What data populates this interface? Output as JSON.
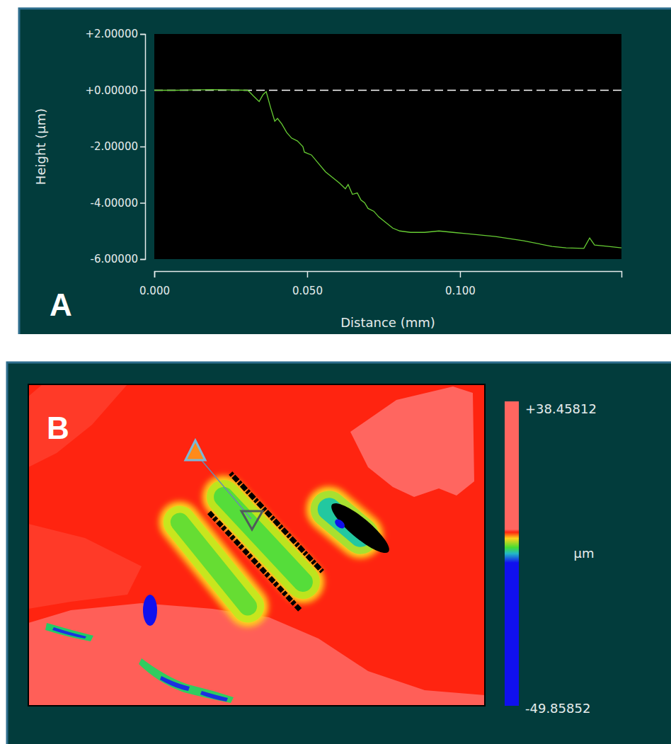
{
  "chart_data": [
    {
      "type": "line",
      "panel_label": "A",
      "x_label": "Distance (mm)",
      "y_label": "Height (µm)",
      "x": [
        0,
        0.0074,
        0.019,
        0.0306,
        0.0324,
        0.0343,
        0.0356,
        0.0366,
        0.038,
        0.0394,
        0.0403,
        0.0417,
        0.0433,
        0.0449,
        0.0468,
        0.0486,
        0.0491,
        0.0514,
        0.0537,
        0.056,
        0.0583,
        0.0606,
        0.0625,
        0.0634,
        0.0648,
        0.0664,
        0.0676,
        0.0688,
        0.0699,
        0.0718,
        0.0734,
        0.0757,
        0.078,
        0.0803,
        0.0838,
        0.0884,
        0.0931,
        0.0977,
        0.1023,
        0.1116,
        0.1208,
        0.1301,
        0.1347,
        0.1405,
        0.1424,
        0.144,
        0.1486,
        0.1528
      ],
      "values": [
        0,
        0,
        0.02,
        0,
        -0.2,
        -0.4,
        -0.15,
        -0.05,
        -0.6,
        -1.1,
        -1.0,
        -1.2,
        -1.5,
        -1.7,
        -1.8,
        -2.0,
        -2.2,
        -2.3,
        -2.6,
        -2.9,
        -3.1,
        -3.3,
        -3.5,
        -3.35,
        -3.7,
        -3.65,
        -3.9,
        -4.0,
        -4.2,
        -4.3,
        -4.5,
        -4.7,
        -4.9,
        -5.0,
        -5.05,
        -5.05,
        -5.0,
        -5.05,
        -5.1,
        -5.2,
        -5.35,
        -5.55,
        -5.6,
        -5.62,
        -5.25,
        -5.5,
        -5.55,
        -5.6
      ],
      "color": "#66cc33",
      "reference_line": 0,
      "xlim": [
        0,
        0.1528
      ],
      "xticks": [
        {
          "value": 0,
          "label": "0.000"
        },
        {
          "value": 0.05,
          "label": "0.050"
        },
        {
          "value": 0.1,
          "label": "0.100"
        }
      ],
      "ylim": [
        -6,
        2
      ],
      "yticks": [
        {
          "value": 2,
          "label": "+2.00000"
        },
        {
          "value": 0,
          "label": "+0.00000"
        },
        {
          "value": -2,
          "label": "-2.00000"
        },
        {
          "value": -4,
          "label": "-4.00000"
        },
        {
          "value": -6,
          "label": "-6.00000"
        }
      ]
    },
    {
      "type": "image",
      "panel_label": "B",
      "colorbar": {
        "range": [
          -49.85852,
          38.45812
        ],
        "ticks": [
          {
            "value": 38.45812,
            "label": "+38.45812"
          },
          {
            "value": -49.85852,
            "label": "-49.85852"
          }
        ],
        "label": "µm"
      }
    }
  ]
}
